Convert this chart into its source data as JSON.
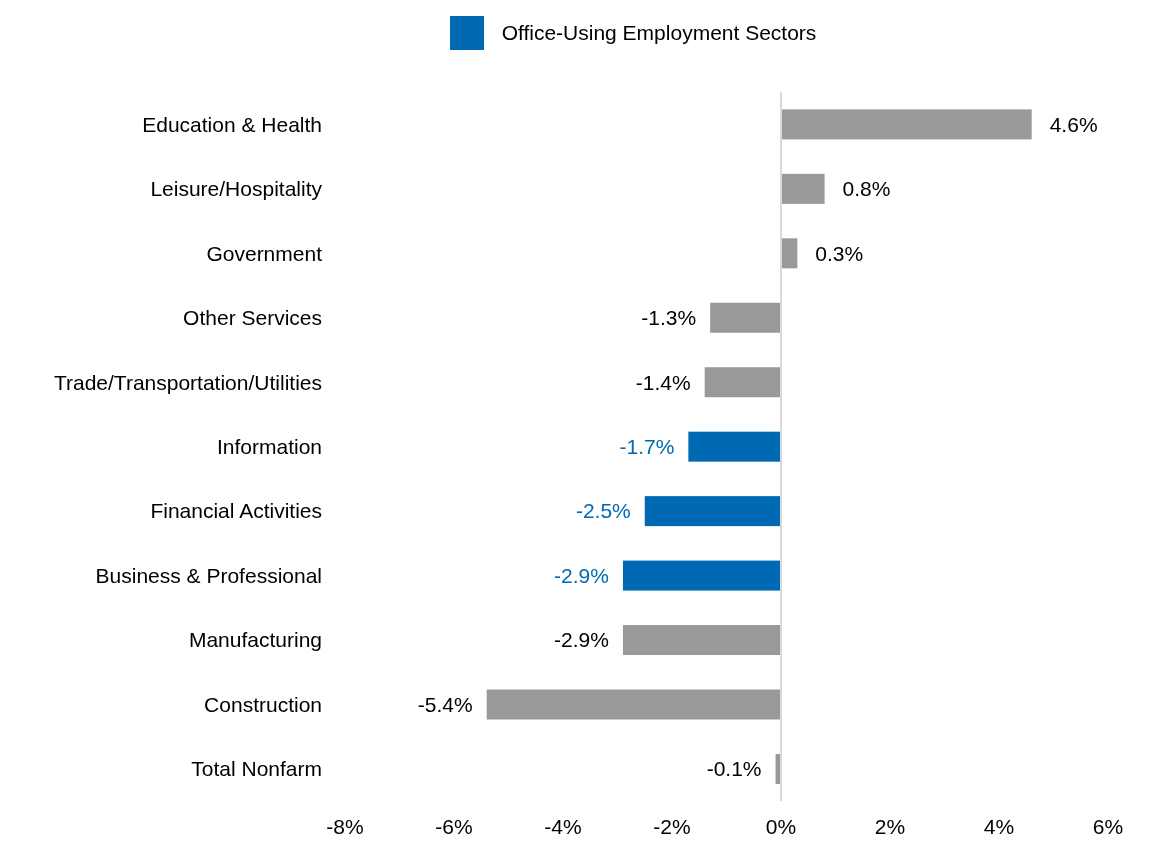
{
  "chart_data": {
    "type": "bar",
    "orientation": "horizontal",
    "stacked": true,
    "legend": "top",
    "categories": [
      "Education & Health",
      "Leisure/Hospitality",
      "Government",
      "Other Services",
      "Trade/Transportation/Utilities",
      "Information",
      "Financial Activities",
      "Business & Professional",
      "Manufacturing",
      "Construction",
      "Total Nonfarm"
    ],
    "series": [
      {
        "color": "#999999",
        "values": [
          4.6,
          0.8,
          0.3,
          -1.3,
          -1.4,
          null,
          null,
          null,
          -2.9,
          -5.4,
          -0.1
        ],
        "value_labels": [
          "4.6%",
          "0.8%",
          "0.3%",
          "-1.3%",
          "-1.4%",
          null,
          null,
          null,
          "-2.9%",
          "-5.4%",
          "-0.1%"
        ]
      },
      {
        "name": "Office-Using Employment Sectors",
        "color": "#0069b4",
        "values": [
          null,
          null,
          null,
          null,
          null,
          -1.7,
          -2.5,
          -2.9,
          null,
          null,
          null
        ],
        "value_labels": [
          null,
          null,
          null,
          null,
          null,
          "-1.7%",
          "-2.5%",
          "-2.9%",
          null,
          null,
          null
        ]
      }
    ],
    "ref_lines": [
      {
        "axis": "x",
        "value": 0,
        "color": "#d9d9d9"
      }
    ],
    "xlim": [
      -8,
      6
    ],
    "xticks": [
      {
        "value": -8,
        "label": "-8%"
      },
      {
        "value": -6,
        "label": "-6%"
      },
      {
        "value": -4,
        "label": "-4%"
      },
      {
        "value": -2,
        "label": "-2%"
      },
      {
        "value": 0,
        "label": "0%"
      },
      {
        "value": 2,
        "label": "2%"
      },
      {
        "value": 4,
        "label": "4%"
      },
      {
        "value": 6,
        "label": "6%"
      }
    ]
  }
}
